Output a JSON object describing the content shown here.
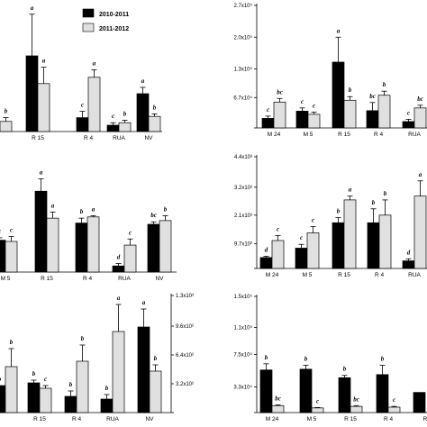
{
  "legend": {
    "items": [
      {
        "label": "2010-2011",
        "color": "#000000"
      },
      {
        "label": "2011-2012",
        "color": "#e0e0e0"
      }
    ],
    "placement": "top"
  },
  "chart_data": [
    {
      "type": "bar",
      "id": "p1",
      "axis_side": "none",
      "ylim": [
        0,
        1
      ],
      "categories": [
        "",
        "R 15",
        "R 4",
        "RUA",
        "NV"
      ],
      "series": [
        {
          "values": [
            0,
            0.6,
            0.11,
            0.05,
            0.3
          ],
          "errors": [
            0,
            0.33,
            0.05,
            0.02,
            0.05
          ],
          "letters": [
            "",
            "a",
            "c",
            "c",
            "a"
          ]
        },
        {
          "values": [
            0.08,
            0.38,
            0.43,
            0.07,
            0.12
          ],
          "errors": [
            0.03,
            0.13,
            0.06,
            0.02,
            0.02
          ],
          "letters": [
            "b",
            "a",
            "a",
            "b",
            "b"
          ]
        }
      ]
    },
    {
      "type": "bar",
      "id": "p2",
      "axis_side": "left",
      "ylim": [
        0,
        27000
      ],
      "ytick_values": [
        6700,
        13000,
        20000,
        27000
      ],
      "ytick_labels": [
        "6.7x10⁴",
        "1.3x10⁵",
        "2.0x10⁵",
        "2.7x10⁵"
      ],
      "categories": [
        "M 24",
        "M 5",
        "R 15",
        "R 4",
        "RUA"
      ],
      "series": [
        {
          "values": [
            2100,
            3700,
            14500,
            3800,
            1400
          ],
          "errors": [
            500,
            700,
            5500,
            1800,
            500
          ],
          "letters": [
            "c",
            "c",
            "a",
            "bc",
            "c"
          ]
        },
        {
          "values": [
            5700,
            3000,
            6100,
            7200,
            4400
          ],
          "errors": [
            800,
            500,
            800,
            900,
            600
          ],
          "letters": [
            "bc",
            "c",
            "b",
            "b",
            "bc"
          ]
        }
      ]
    },
    {
      "type": "bar",
      "id": "p3",
      "axis_side": "none",
      "ylim": [
        0,
        1
      ],
      "categories": [
        "M 5",
        "R 15",
        "R 4",
        "RUA",
        "NV"
      ],
      "series": [
        {
          "values": [
            0.26,
            0.66,
            0.4,
            0.05,
            0.39
          ],
          "errors": [
            0.02,
            0.1,
            0.04,
            0.02,
            0.02
          ],
          "letters": [
            "c",
            "a",
            "b",
            "d",
            "bc"
          ]
        },
        {
          "values": [
            0.25,
            0.44,
            0.45,
            0.22,
            0.42
          ],
          "errors": [
            0.04,
            0.05,
            0.01,
            0.05,
            0.04
          ],
          "letters": [
            "c",
            "a",
            "a",
            "c",
            "b"
          ]
        }
      ]
    },
    {
      "type": "bar",
      "id": "p4",
      "axis_side": "left",
      "ylim": [
        0,
        4400
      ],
      "ytick_values": [
        970,
        2100,
        3200,
        4400
      ],
      "ytick_labels": [
        "9.7x10²",
        "2.1x10³",
        "3.2x10³",
        "4.4x10³"
      ],
      "categories": [
        "M 24",
        "M 5",
        "R 15",
        "R 4",
        "RUA"
      ],
      "series": [
        {
          "values": [
            430,
            800,
            1800,
            1800,
            300
          ],
          "errors": [
            50,
            150,
            200,
            550,
            80
          ],
          "letters": [
            "d",
            "c",
            "b",
            "b",
            "d"
          ]
        },
        {
          "values": [
            1100,
            1400,
            2700,
            2100,
            2850
          ],
          "errors": [
            200,
            250,
            150,
            600,
            600
          ],
          "letters": [
            "c",
            "c",
            "a",
            "b",
            "a"
          ]
        }
      ]
    },
    {
      "type": "bar",
      "id": "p5",
      "axis_side": "right",
      "ylim": [
        0,
        1300
      ],
      "ytick_values": [
        320,
        640,
        960,
        1300
      ],
      "ytick_labels": [
        "3.2x10²",
        "6.4x10²",
        "9.6x10²",
        "1.3x10³"
      ],
      "categories": [
        "",
        "R 15",
        "R 4",
        "RUA",
        "NV"
      ],
      "series": [
        {
          "values": [
            300,
            330,
            180,
            150,
            950
          ],
          "errors": [
            0,
            30,
            60,
            50,
            200
          ],
          "letters": [
            "b",
            "b",
            "b",
            "b",
            "a"
          ]
        },
        {
          "values": [
            510,
            270,
            570,
            900,
            460
          ],
          "errors": [
            200,
            30,
            180,
            300,
            70
          ],
          "letters": [
            "b",
            "c",
            "b",
            "a",
            "b"
          ]
        }
      ]
    },
    {
      "type": "bar",
      "id": "p6",
      "axis_side": "left",
      "ylim": [
        0,
        15000
      ],
      "ytick_values": [
        3300,
        7500,
        11000,
        15000
      ],
      "ytick_labels": [
        "3.3x10⁴",
        "7.5x10⁴",
        "1.1x10⁵",
        "1.5x10⁵"
      ],
      "categories": [
        "M 24",
        "M 5",
        "R 15",
        "R 4",
        "R"
      ],
      "series": [
        {
          "values": [
            5500,
            5600,
            4500,
            4900,
            2600
          ],
          "errors": [
            800,
            500,
            300,
            1200,
            0
          ],
          "letters": [
            "b",
            "b",
            "b",
            "b",
            ""
          ]
        },
        {
          "values": [
            900,
            600,
            800,
            700,
            0
          ],
          "errors": [
            100,
            50,
            100,
            100,
            0
          ],
          "letters": [
            "bc",
            "c",
            "bc",
            "c",
            ""
          ]
        }
      ]
    }
  ]
}
